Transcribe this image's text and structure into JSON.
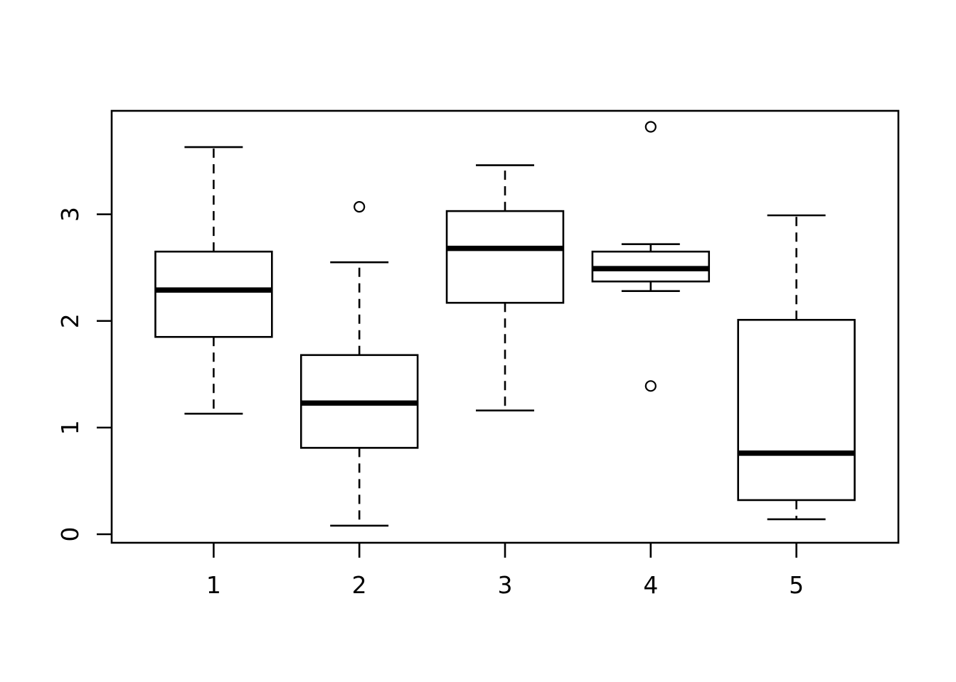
{
  "figure": {
    "background": "#FFFFFF",
    "foreground": "#000000",
    "title": "",
    "xlabel": "",
    "ylabel": ""
  },
  "chart_data": {
    "type": "boxplot",
    "title": "",
    "xlabel": "",
    "ylabel": "",
    "categories": [
      "1",
      "2",
      "3",
      "4",
      "5"
    ],
    "x_ticks": [
      1,
      2,
      3,
      4,
      5
    ],
    "y_ticks": [
      0,
      1,
      2,
      3
    ],
    "xlim": [
      0.3,
      5.7
    ],
    "ylim": [
      -0.08,
      3.97
    ],
    "grid": false,
    "legend": null,
    "box_width": 0.8,
    "cap_width": 0.4,
    "series": [
      {
        "group": "1",
        "whisker_low": 1.13,
        "q1": 1.85,
        "median": 2.29,
        "q3": 2.65,
        "whisker_high": 3.63,
        "outliers": []
      },
      {
        "group": "2",
        "whisker_low": 0.08,
        "q1": 0.81,
        "median": 1.23,
        "q3": 1.68,
        "whisker_high": 2.55,
        "outliers": [
          3.07
        ]
      },
      {
        "group": "3",
        "whisker_low": 1.16,
        "q1": 2.17,
        "median": 2.68,
        "q3": 3.03,
        "whisker_high": 3.46,
        "outliers": []
      },
      {
        "group": "4",
        "whisker_low": 2.28,
        "q1": 2.37,
        "median": 2.49,
        "q3": 2.65,
        "whisker_high": 2.72,
        "outliers": [
          3.82,
          1.39
        ]
      },
      {
        "group": "5",
        "whisker_low": 0.14,
        "q1": 0.32,
        "median": 0.76,
        "q3": 2.01,
        "whisker_high": 2.99,
        "outliers": []
      }
    ]
  }
}
